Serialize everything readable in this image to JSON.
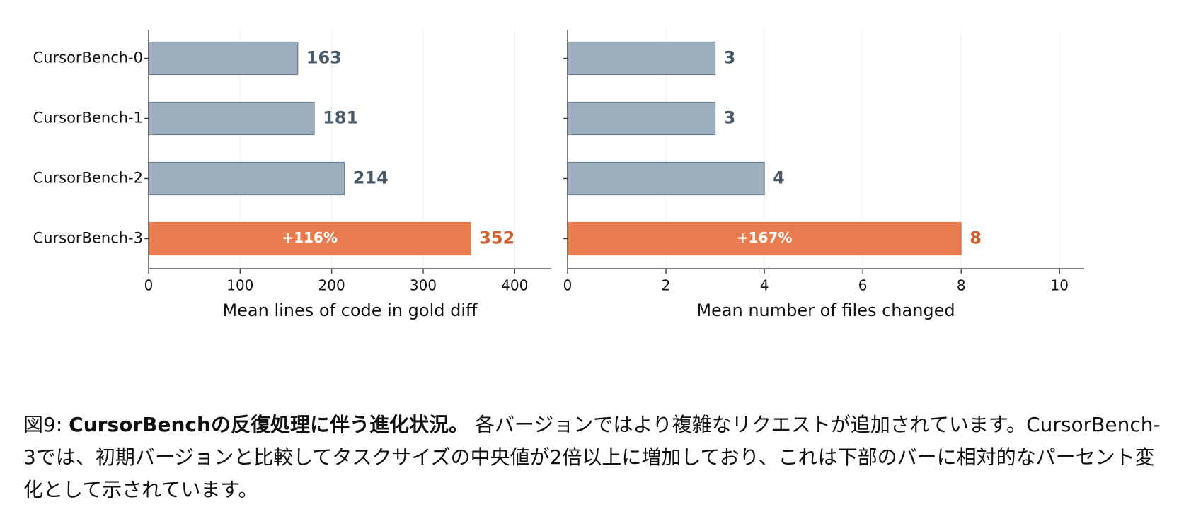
{
  "chart_data": [
    {
      "type": "barh",
      "categories": [
        "CursorBench-0",
        "CursorBench-1",
        "CursorBench-2",
        "CursorBench-3"
      ],
      "values": [
        163,
        181,
        214,
        352
      ],
      "bar_labels": [
        null,
        null,
        null,
        "+116%"
      ],
      "colors": [
        "#9dafbf",
        "#9dafbf",
        "#9dafbf",
        "#e97c4f"
      ],
      "label_colors": [
        "#4b5a68",
        "#4b5a68",
        "#4b5a68",
        "#d2602e"
      ],
      "xlabel": "Mean lines of code in gold diff",
      "xlim": [
        0,
        440
      ],
      "xticks": [
        0,
        100,
        200,
        300,
        400
      ],
      "grid": true
    },
    {
      "type": "barh",
      "values": [
        3,
        3,
        4,
        8
      ],
      "bar_labels": [
        null,
        null,
        null,
        "+167%"
      ],
      "colors": [
        "#9dafbf",
        "#9dafbf",
        "#9dafbf",
        "#e97c4f"
      ],
      "label_colors": [
        "#4b5a68",
        "#4b5a68",
        "#4b5a68",
        "#d2602e"
      ],
      "xlabel": "Mean number of files changed",
      "xlim": [
        0,
        10.5
      ],
      "xticks": [
        0,
        2,
        4,
        6,
        8,
        10
      ],
      "grid": true
    }
  ],
  "caption": {
    "label": "図9:",
    "title": "CursorBenchの反復処理に伴う進化状況。",
    "text": "各バージョンではより複雑なリクエストが追加されています。CursorBench-3では、初期バージョンと比較してタスクサイズの中央値が2倍以上に増加しており、これは下部のバーに相対的なパーセント変化として示されています。"
  }
}
